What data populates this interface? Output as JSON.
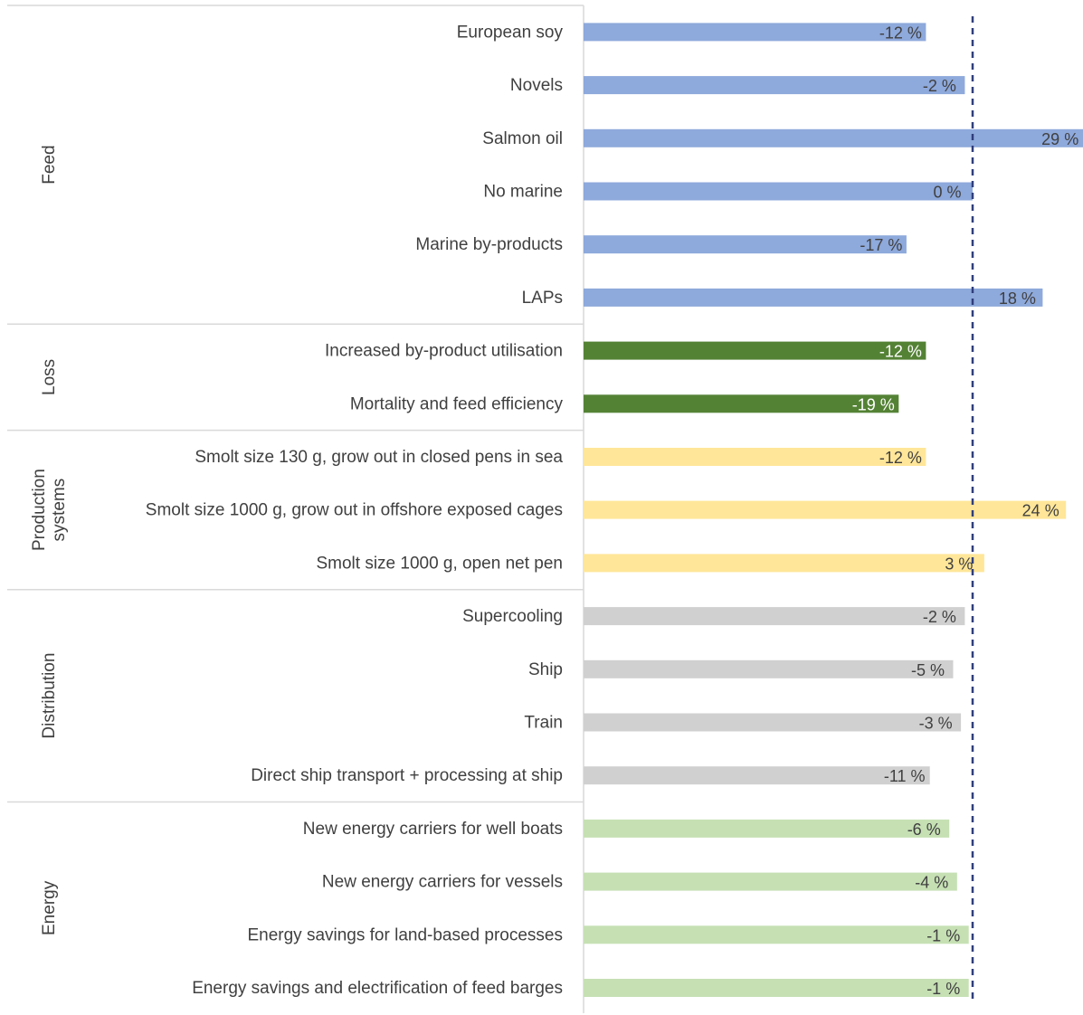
{
  "chart_data": {
    "type": "bar",
    "orientation": "horizontal",
    "xlim": [
      -30,
      30
    ],
    "reference_line": {
      "x": 0,
      "style": "dashed",
      "color": "#2F3E7C"
    },
    "grid": false,
    "legend": "none",
    "groups": [
      {
        "name": "Feed",
        "color": "#8EA9DB",
        "label_color": "#404040",
        "items": [
          {
            "label": "European soy",
            "value": -12,
            "value_label": "-12 %"
          },
          {
            "label": "Novels",
            "value": -2,
            "value_label": "-2 %"
          },
          {
            "label": "Salmon oil",
            "value": 29,
            "value_label": "29 %"
          },
          {
            "label": "No marine",
            "value": 0,
            "value_label": "0 %"
          },
          {
            "label": "Marine by-products",
            "value": -17,
            "value_label": "-17 %"
          },
          {
            "label": "LAPs",
            "value": 18,
            "value_label": "18 %"
          }
        ]
      },
      {
        "name": "Loss",
        "color": "#548235",
        "label_color": "#ffffff",
        "items": [
          {
            "label": "Increased by-product utilisation",
            "value": -12,
            "value_label": "-12 %"
          },
          {
            "label": "Mortality and feed efficiency",
            "value": -19,
            "value_label": "-19 %"
          }
        ]
      },
      {
        "name": "Production systems",
        "name_lines": [
          "Production",
          "systems"
        ],
        "color": "#FFE699",
        "label_color": "#404040",
        "items": [
          {
            "label": "Smolt size 130 g, grow out in closed pens in sea",
            "value": -12,
            "value_label": "-12 %"
          },
          {
            "label": "Smolt size 1000 g, grow out in offshore exposed cages",
            "value": 24,
            "value_label": "24 %"
          },
          {
            "label": "Smolt size 1000 g, open net pen",
            "value": 3,
            "value_label": "3 %"
          }
        ]
      },
      {
        "name": "Distribution",
        "color": "#D0D0D0",
        "label_color": "#404040",
        "items": [
          {
            "label": "Supercooling",
            "value": -2,
            "value_label": "-2 %"
          },
          {
            "label": "Ship",
            "value": -5,
            "value_label": "-5 %"
          },
          {
            "label": "Train",
            "value": -3,
            "value_label": "-3 %"
          },
          {
            "label": "Direct ship transport + processing at ship",
            "value": -11,
            "value_label": "-11 %"
          }
        ]
      },
      {
        "name": "Energy",
        "color": "#C6E0B4",
        "label_color": "#404040",
        "items": [
          {
            "label": "New energy carriers for well boats",
            "value": -6,
            "value_label": "-6 %"
          },
          {
            "label": "New energy carriers for vessels",
            "value": -4,
            "value_label": "-4 %"
          },
          {
            "label": "Energy savings for land-based processes",
            "value": -1,
            "value_label": "-1 %"
          },
          {
            "label": "Energy savings and electrification of feed barges",
            "value": -1,
            "value_label": "-1 %"
          }
        ]
      }
    ]
  }
}
